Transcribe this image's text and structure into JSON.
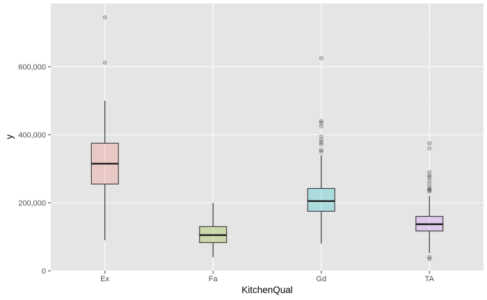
{
  "chart_data": {
    "type": "box",
    "title": "",
    "xlabel": "KitchenQual",
    "ylabel": "y",
    "ylim": [
      -10000,
      760000
    ],
    "y_ticks": [
      0,
      200000,
      400000,
      600000
    ],
    "y_tick_labels": [
      "0",
      "200,000",
      "400,000",
      "600,000"
    ],
    "grid": true,
    "legend": "none",
    "panel_color": "#e5e5e5",
    "categories": [
      "Ex",
      "Fa",
      "Gd",
      "TA"
    ],
    "boxes": [
      {
        "name": "Ex",
        "fill": "#f8766d",
        "whisker_low": 90000,
        "q1": 255000,
        "median": 315000,
        "q3": 375000,
        "whisker_high": 500000,
        "outliers": [
          745000,
          612000
        ]
      },
      {
        "name": "Fa",
        "fill": "#7cae00",
        "whisker_low": 40000,
        "q1": 83000,
        "median": 105000,
        "q3": 130000,
        "whisker_high": 200000,
        "outliers": []
      },
      {
        "name": "Gd",
        "fill": "#00bfc4",
        "whisker_low": 80000,
        "q1": 175000,
        "median": 205000,
        "q3": 242000,
        "whisker_high": 340000,
        "outliers": [
          625000,
          440000,
          435000,
          425000,
          395000,
          385000,
          378000,
          372000,
          355000,
          350000
        ]
      },
      {
        "name": "TA",
        "fill": "#c77cff",
        "whisker_low": 52000,
        "q1": 117000,
        "median": 137000,
        "q3": 160000,
        "whisker_high": 220000,
        "outliers": [
          375000,
          360000,
          290000,
          280000,
          275000,
          265000,
          255000,
          245000,
          240000,
          237000,
          233000,
          40000,
          35000
        ]
      }
    ]
  }
}
